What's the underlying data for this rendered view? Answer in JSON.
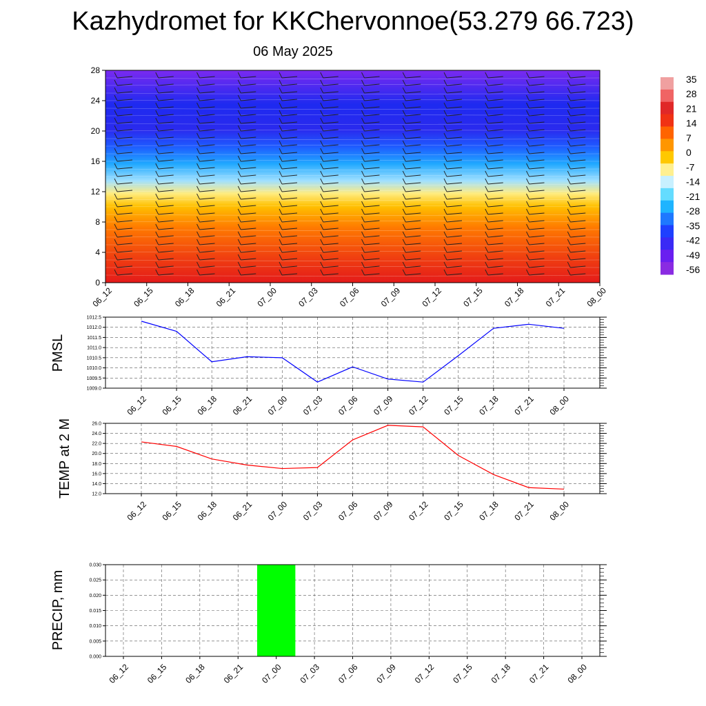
{
  "title": "Kazhydromet for KKChervonnoe(53.279 66.723)",
  "subtitle": "06 May 2025",
  "time_labels": [
    "06_12",
    "06_15",
    "06_18",
    "06_21",
    "07_00",
    "07_03",
    "07_06",
    "07_09",
    "07_12",
    "07_15",
    "07_18",
    "07_21",
    "08_00"
  ],
  "colorbar": {
    "labels": [
      "35",
      "28",
      "21",
      "14",
      "7",
      "0",
      "-7",
      "-14",
      "-21",
      "-28",
      "-35",
      "-42",
      "-49",
      "-56"
    ],
    "colors": [
      "#8a2be2",
      "#6a1ff0",
      "#3a2af5",
      "#1e40ff",
      "#1e78ff",
      "#1eb4ff",
      "#64dcff",
      "#c8f0ff",
      "#fff090",
      "#ffc800",
      "#ff9600",
      "#ff6400",
      "#f03214",
      "#e02828",
      "#f06464",
      "#f0a0a0"
    ]
  },
  "chart_data": [
    {
      "type": "heatmap",
      "title": "",
      "ylim": [
        0,
        28
      ],
      "yticks": [
        "0",
        "4",
        "8",
        "12",
        "16",
        "20",
        "24",
        "28"
      ],
      "categories": [
        "06_12",
        "06_15",
        "06_18",
        "06_21",
        "07_00",
        "07_03",
        "07_06",
        "07_09",
        "07_12",
        "07_15",
        "07_18",
        "07_21",
        "08_00"
      ],
      "note_levels": "temperature color bands by model level with wind barbs"
    },
    {
      "type": "line",
      "ylabel": "PMSL",
      "ylim": [
        1009.0,
        1012.5
      ],
      "yticks": [
        "1009.0",
        "1009.5",
        "1010.0",
        "1010.5",
        "1011.0",
        "1011.5",
        "1012.0",
        "1012.5"
      ],
      "x": [
        "06_12",
        "06_15",
        "06_18",
        "06_21",
        "07_00",
        "07_03",
        "07_06",
        "07_09",
        "07_12",
        "07_15",
        "07_18",
        "07_21",
        "08_00"
      ],
      "values": [
        1012.3,
        1011.8,
        1010.3,
        1010.55,
        1010.5,
        1009.3,
        1010.05,
        1009.45,
        1009.3,
        1010.6,
        1011.95,
        1012.15,
        1011.95
      ],
      "color": "#0000ff"
    },
    {
      "type": "line",
      "ylabel": "TEMP at 2 M",
      "ylim": [
        12.0,
        26.0
      ],
      "yticks": [
        "12.0",
        "14.0",
        "16.0",
        "18.0",
        "20.0",
        "22.0",
        "24.0",
        "26.0"
      ],
      "x": [
        "06_12",
        "06_15",
        "06_18",
        "06_21",
        "07_00",
        "07_03",
        "07_06",
        "07_09",
        "07_12",
        "07_15",
        "07_18",
        "07_21",
        "08_00"
      ],
      "values": [
        22.3,
        21.4,
        18.9,
        17.7,
        17.0,
        17.2,
        22.7,
        25.6,
        25.3,
        19.6,
        15.8,
        13.2,
        12.9
      ],
      "color": "#ff0000"
    },
    {
      "type": "bar",
      "ylabel": "PRECIP, mm",
      "ylim": [
        0.0,
        0.03
      ],
      "yticks": [
        "0.000",
        "0.005",
        "0.010",
        "0.015",
        "0.020",
        "0.025",
        "0.030"
      ],
      "x": [
        "06_12",
        "06_15",
        "06_18",
        "06_21",
        "07_00",
        "07_03",
        "07_06",
        "07_09",
        "07_12",
        "07_15",
        "07_18",
        "07_21",
        "08_00"
      ],
      "values": [
        0,
        0,
        0,
        0,
        0.03,
        0,
        0,
        0,
        0,
        0,
        0,
        0,
        0
      ],
      "color": "#00ff00"
    }
  ]
}
